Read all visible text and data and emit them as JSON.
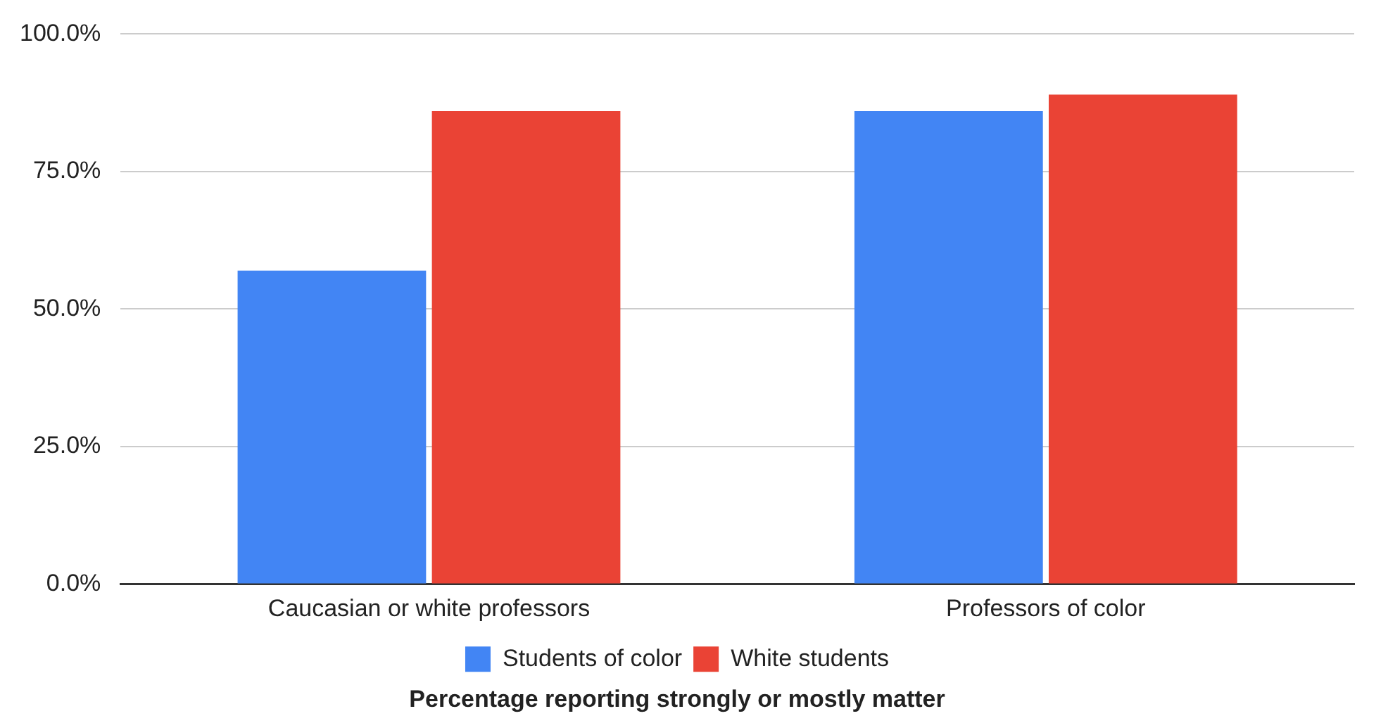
{
  "chart_data": {
    "type": "bar",
    "xlabel": "Percentage reporting strongly or mostly matter",
    "categories": [
      "Caucasian or white professors",
      "Professors of color"
    ],
    "series": [
      {
        "name": "Students of color",
        "color": "#4285f4",
        "values": [
          57,
          86
        ]
      },
      {
        "name": "White students",
        "color": "#ea4335",
        "values": [
          86,
          89
        ]
      }
    ],
    "ylim": [
      0,
      100
    ],
    "yticks": [
      {
        "value": 0,
        "label": "0.0%"
      },
      {
        "value": 25,
        "label": "25.0%"
      },
      {
        "value": 50,
        "label": "50.0%"
      },
      {
        "value": 75,
        "label": "75.0%"
      },
      {
        "value": 100,
        "label": "100.0%"
      }
    ],
    "grid": "y",
    "legend": "bottom"
  }
}
